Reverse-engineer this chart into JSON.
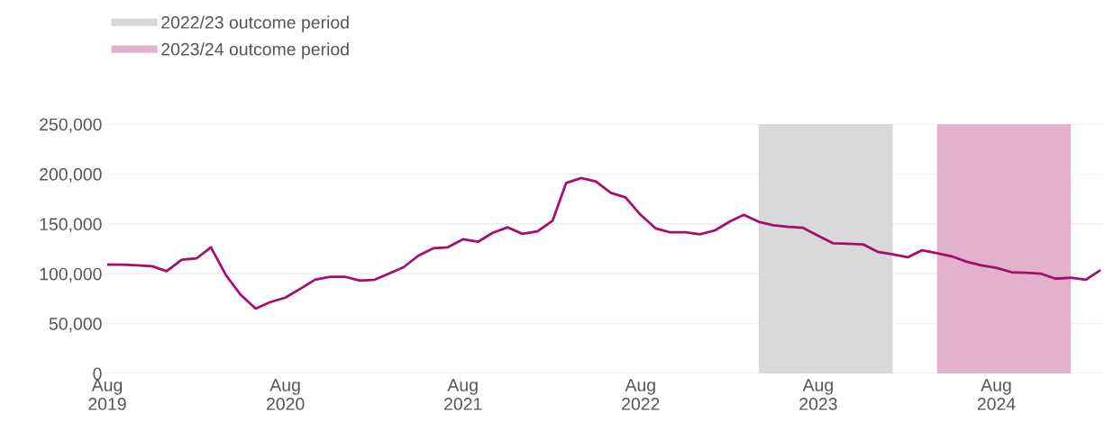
{
  "chart_data": {
    "type": "line",
    "x": [
      "2019-08",
      "2019-09",
      "2019-10",
      "2019-11",
      "2019-12",
      "2020-01",
      "2020-02",
      "2020-03",
      "2020-04",
      "2020-05",
      "2020-06",
      "2020-07",
      "2020-08",
      "2020-09",
      "2020-10",
      "2020-11",
      "2020-12",
      "2021-01",
      "2021-02",
      "2021-03",
      "2021-04",
      "2021-05",
      "2021-06",
      "2021-07",
      "2021-08",
      "2021-09",
      "2021-10",
      "2021-11",
      "2021-12",
      "2022-01",
      "2022-02",
      "2022-03",
      "2022-04",
      "2022-05",
      "2022-06",
      "2022-07",
      "2022-08",
      "2022-09",
      "2022-10",
      "2022-11",
      "2022-12",
      "2023-01",
      "2023-02",
      "2023-03",
      "2023-04",
      "2023-05",
      "2023-06",
      "2023-07",
      "2023-08",
      "2023-09",
      "2023-10",
      "2023-11",
      "2023-12",
      "2024-01",
      "2024-02",
      "2024-03",
      "2024-04",
      "2024-05",
      "2024-06",
      "2024-07",
      "2024-08",
      "2024-09",
      "2024-10",
      "2024-11",
      "2024-12",
      "2025-01",
      "2025-02",
      "2025-03"
    ],
    "series": [
      {
        "color": "#a50f6b",
        "values": [
          109000,
          109000,
          108500,
          107500,
          102500,
          114000,
          115500,
          126500,
          98500,
          79000,
          65000,
          71500,
          76000,
          85000,
          94000,
          97000,
          97000,
          93000,
          94000,
          100000,
          106500,
          118000,
          125500,
          126500,
          134500,
          132000,
          141000,
          146500,
          140000,
          142500,
          153000,
          191000,
          196000,
          192500,
          181000,
          176500,
          159000,
          145500,
          141500,
          141500,
          139500,
          143500,
          152500,
          159000,
          152000,
          148500,
          147000,
          146000,
          138000,
          130500,
          130000,
          129500,
          122000,
          119500,
          116500,
          123500,
          120500,
          117500,
          112000,
          108500,
          106000,
          101500,
          101000,
          100000,
          95000,
          96000,
          94000,
          103000
        ]
      }
    ],
    "xlim": [
      "2019-08-01",
      "2025-03-08"
    ],
    "xticks": [
      {
        "value": "2019-08-01",
        "label": "Aug\n2019"
      },
      {
        "value": "2020-08-01",
        "label": "Aug\n2020"
      },
      {
        "value": "2021-08-01",
        "label": "Aug\n2021"
      },
      {
        "value": "2022-08-01",
        "label": "Aug\n2022"
      },
      {
        "value": "2023-08-01",
        "label": "Aug\n2023"
      },
      {
        "value": "2024-08-01",
        "label": "Aug\n2024"
      }
    ],
    "ylim": [
      0,
      250000
    ],
    "yticks": [
      {
        "value": 0,
        "label": "0"
      },
      {
        "value": 50000,
        "label": "50,000"
      },
      {
        "value": 100000,
        "label": "100,000"
      },
      {
        "value": 150000,
        "label": "150,000"
      },
      {
        "value": 200000,
        "label": "200,000"
      },
      {
        "value": 250000,
        "label": "250,000"
      }
    ],
    "bands": [
      {
        "axis": "x",
        "from": "2023-04-01",
        "to": "2024-01-01",
        "label": "2022/23 outcome period",
        "color": "#d9d9d9"
      },
      {
        "axis": "x",
        "from": "2024-04-01",
        "to": "2025-01-01",
        "label": "2023/24 outcome period",
        "color": "#e2b1cb"
      }
    ],
    "grid": "y",
    "legend": "top left",
    "line_style": "solid",
    "marker": "none"
  }
}
